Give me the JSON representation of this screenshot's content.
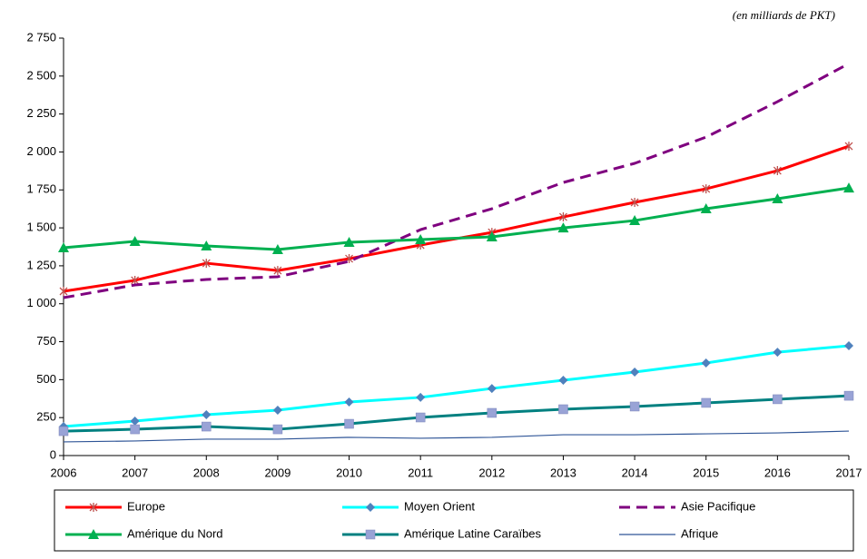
{
  "chart_data": {
    "type": "line",
    "annotation": "(en milliards de PKT)",
    "categories": [
      "2006",
      "2007",
      "2008",
      "2009",
      "2010",
      "2011",
      "2012",
      "2013",
      "2014",
      "2015",
      "2016",
      "2017"
    ],
    "ylim": [
      0,
      2750
    ],
    "yticks": [
      0,
      250,
      500,
      750,
      {
        "value": 1000,
        "label": "1 000"
      },
      {
        "value": 1250,
        "label": "1 250"
      },
      {
        "value": 1500,
        "label": "1 500"
      },
      {
        "value": 1750,
        "label": "1 750"
      },
      {
        "value": 2000,
        "label": "2 000"
      },
      {
        "value": 2250,
        "label": "2 250"
      },
      {
        "value": 2500,
        "label": "2 500"
      },
      {
        "value": 2750,
        "label": "2 750"
      }
    ],
    "grid": false,
    "legend": "bottom",
    "series": [
      {
        "name": "Europe",
        "color": "#ff0000",
        "marker": "star",
        "marker_color": "#c0504d",
        "width": 3,
        "values": [
          1082,
          1154,
          1267,
          1219,
          1297,
          1387,
          1470,
          1572,
          1668,
          1757,
          1877,
          2038
        ]
      },
      {
        "name": "Moyen Orient",
        "color": "#00ffff",
        "marker": "diamond",
        "marker_color": "#4f81bd",
        "width": 3,
        "values": [
          191,
          227,
          269,
          299,
          353,
          383,
          442,
          496,
          550,
          610,
          681,
          723
        ]
      },
      {
        "name": "Asie Pacifique",
        "color": "#7f007f",
        "marker": "none",
        "dash": true,
        "width": 3,
        "values": [
          1040,
          1124,
          1160,
          1178,
          1279,
          1488,
          1626,
          1799,
          1925,
          2098,
          2331,
          2582
        ]
      },
      {
        "name": "Amérique du Nord",
        "color": "#00b050",
        "marker": "triangle",
        "marker_color": "#00b050",
        "width": 3,
        "values": [
          1369,
          1411,
          1381,
          1357,
          1405,
          1423,
          1441,
          1500,
          1548,
          1626,
          1692,
          1763
        ]
      },
      {
        "name": "Amérique Latine Caraïbes",
        "color": "#008080",
        "marker": "square",
        "marker_color": "#99a3d6",
        "width": 3,
        "values": [
          161,
          173,
          191,
          173,
          209,
          251,
          281,
          305,
          323,
          347,
          371,
          394
        ]
      },
      {
        "name": "Afrique",
        "color": "#2f5597",
        "marker": "none",
        "width": 1.2,
        "values": [
          90,
          96,
          108,
          108,
          120,
          114,
          120,
          137,
          137,
          143,
          149,
          161
        ]
      }
    ]
  }
}
